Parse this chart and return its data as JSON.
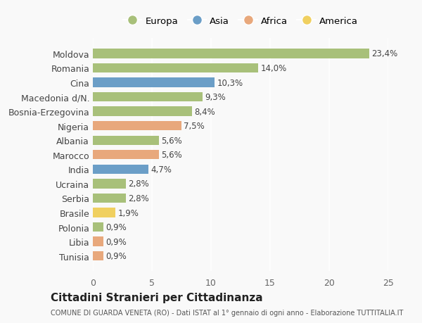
{
  "categories": [
    "Tunisia",
    "Libia",
    "Polonia",
    "Brasile",
    "Serbia",
    "Ucraina",
    "India",
    "Marocco",
    "Albania",
    "Nigeria",
    "Bosnia-Erzegovina",
    "Macedonia d/N.",
    "Cina",
    "Romania",
    "Moldova"
  ],
  "values": [
    0.9,
    0.9,
    0.9,
    1.9,
    2.8,
    2.8,
    4.7,
    5.6,
    5.6,
    7.5,
    8.4,
    9.3,
    10.3,
    14.0,
    23.4
  ],
  "continents": [
    "Africa",
    "Africa",
    "Europa",
    "America",
    "Europa",
    "Europa",
    "Asia",
    "Africa",
    "Europa",
    "Africa",
    "Europa",
    "Europa",
    "Asia",
    "Europa",
    "Europa"
  ],
  "colors": {
    "Europa": "#a8c07a",
    "Asia": "#6b9ec7",
    "Africa": "#e8a87c",
    "America": "#f0d060"
  },
  "labels": [
    "0,9%",
    "0,9%",
    "0,9%",
    "1,9%",
    "2,8%",
    "2,8%",
    "4,7%",
    "5,6%",
    "5,6%",
    "7,5%",
    "8,4%",
    "9,3%",
    "10,3%",
    "14,0%",
    "23,4%"
  ],
  "xlim": [
    0,
    25
  ],
  "xticks": [
    0,
    5,
    10,
    15,
    20,
    25
  ],
  "title": "Cittadini Stranieri per Cittadinanza",
  "subtitle": "COMUNE DI GUARDA VENETA (RO) - Dati ISTAT al 1° gennaio di ogni anno - Elaborazione TUTTITALIA.IT",
  "bg_color": "#f9f9f9",
  "bar_height": 0.65,
  "legend_labels": [
    "Europa",
    "Asia",
    "Africa",
    "America"
  ],
  "legend_colors": [
    "#a8c07a",
    "#6b9ec7",
    "#e8a87c",
    "#f0d060"
  ]
}
